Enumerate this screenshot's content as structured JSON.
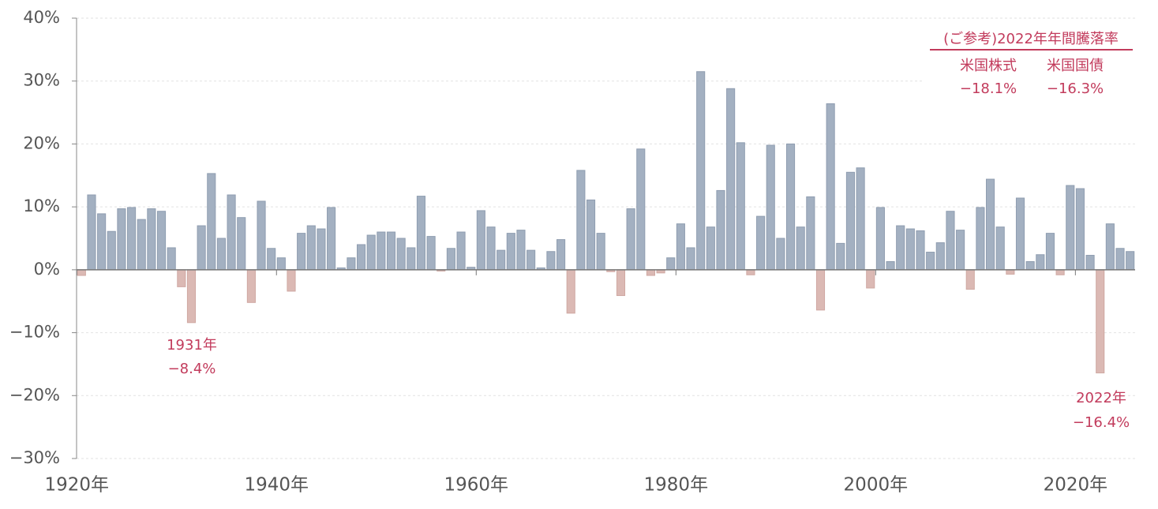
{
  "chart_data": {
    "type": "bar",
    "x": [
      1920,
      1921,
      1922,
      1923,
      1924,
      1925,
      1926,
      1927,
      1928,
      1929,
      1930,
      1931,
      1932,
      1933,
      1934,
      1935,
      1936,
      1937,
      1938,
      1939,
      1940,
      1941,
      1942,
      1943,
      1944,
      1945,
      1946,
      1947,
      1948,
      1949,
      1950,
      1951,
      1952,
      1953,
      1954,
      1955,
      1956,
      1957,
      1958,
      1959,
      1960,
      1961,
      1962,
      1963,
      1964,
      1965,
      1966,
      1967,
      1968,
      1969,
      1970,
      1971,
      1972,
      1973,
      1974,
      1975,
      1976,
      1977,
      1978,
      1979,
      1980,
      1981,
      1982,
      1983,
      1984,
      1985,
      1986,
      1987,
      1988,
      1989,
      1990,
      1991,
      1992,
      1993,
      1994,
      1995,
      1996,
      1997,
      1998,
      1999,
      2000,
      2001,
      2002,
      2003,
      2004,
      2005,
      2006,
      2007,
      2008,
      2009,
      2010,
      2011,
      2012,
      2013,
      2014,
      2015,
      2016,
      2017,
      2018,
      2019,
      2020,
      2021,
      2022,
      2023,
      2024,
      2025
    ],
    "values": [
      -0.9,
      11.9,
      8.9,
      6.1,
      9.7,
      9.9,
      8.0,
      9.7,
      9.3,
      3.5,
      -2.7,
      -8.4,
      7.0,
      15.3,
      5.0,
      11.9,
      8.3,
      -5.2,
      10.9,
      3.4,
      1.9,
      -3.4,
      5.8,
      7.0,
      6.5,
      9.9,
      0.3,
      1.9,
      4.0,
      5.5,
      6.0,
      6.0,
      5.0,
      3.5,
      11.7,
      5.3,
      -0.2,
      3.4,
      6.0,
      0.4,
      9.4,
      6.8,
      3.1,
      5.8,
      6.3,
      3.1,
      0.3,
      2.9,
      4.8,
      -6.9,
      15.8,
      11.1,
      5.8,
      -0.3,
      -4.1,
      9.7,
      19.2,
      -0.9,
      -0.5,
      1.9,
      7.3,
      3.5,
      31.5,
      6.8,
      12.6,
      28.8,
      20.2,
      -0.8,
      8.5,
      19.8,
      5.0,
      20.0,
      6.8,
      11.6,
      -6.4,
      26.4,
      4.2,
      15.5,
      16.2,
      -2.9,
      9.9,
      1.3,
      7.0,
      6.5,
      6.2,
      2.8,
      4.3,
      9.3,
      6.3,
      -3.1,
      9.9,
      14.4,
      6.8,
      -0.7,
      11.4,
      1.3,
      2.4,
      5.8,
      -0.8,
      13.4,
      12.9,
      2.3,
      -16.4,
      7.3,
      3.4,
      2.9
    ],
    "positive_color": "#a3b0c1",
    "negative_color": "#dbb9b4",
    "xlim": [
      1919.5,
      2025.5
    ],
    "xticks": [
      {
        "value": 1920,
        "label": "1920年"
      },
      {
        "value": 1940,
        "label": "1940年"
      },
      {
        "value": 1960,
        "label": "1960年"
      },
      {
        "value": 1980,
        "label": "1980年"
      },
      {
        "value": 2000,
        "label": "2000年"
      },
      {
        "value": 2020,
        "label": "2020年"
      }
    ],
    "ylim": [
      -30,
      40
    ],
    "yticks": [
      {
        "value": -30,
        "label": "−30%"
      },
      {
        "value": -20,
        "label": "−20%"
      },
      {
        "value": -10,
        "label": "−10%"
      },
      {
        "value": 0,
        "label": "0%"
      },
      {
        "value": 10,
        "label": "10%"
      },
      {
        "value": 20,
        "label": "20%"
      },
      {
        "value": 30,
        "label": "30%"
      },
      {
        "value": 40,
        "label": "40%"
      }
    ],
    "grid": true,
    "annotations": [
      {
        "year": "1931年",
        "value": "−8.4%"
      },
      {
        "year": "2022年",
        "value": "−16.4%"
      }
    ],
    "reference": {
      "title": "(ご参考)2022年年間騰落率",
      "items": [
        {
          "name": "米国株式",
          "value": "−18.1%"
        },
        {
          "name": "米国国債",
          "value": "−16.3%"
        }
      ]
    }
  }
}
